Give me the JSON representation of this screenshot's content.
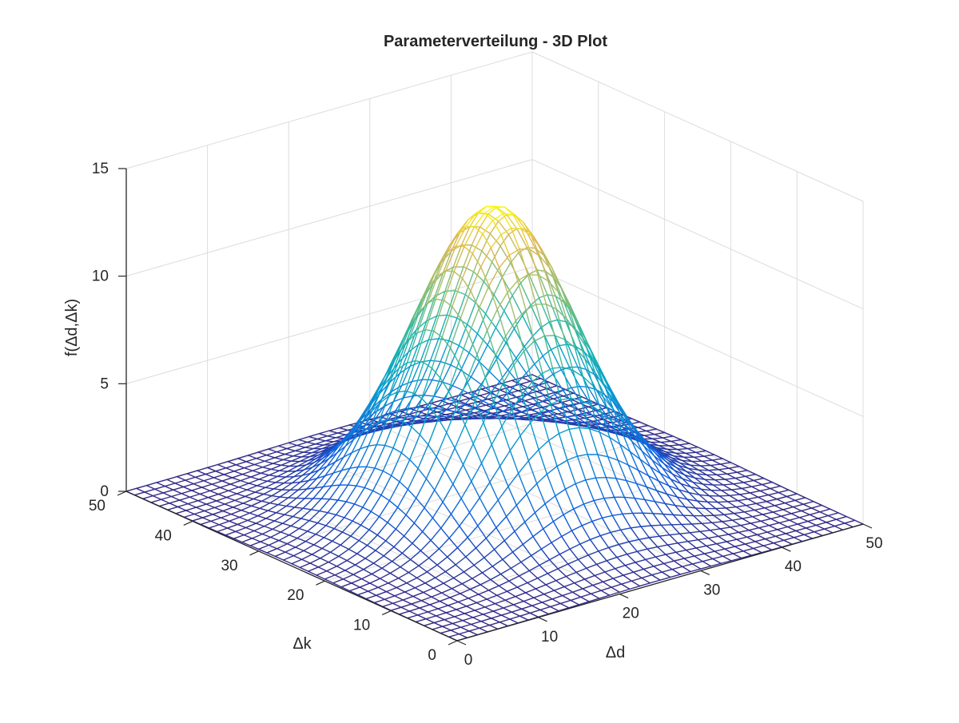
{
  "chart_data": {
    "type": "surface",
    "title": "Parameterverteilung - 3D Plot",
    "xlabel": "Δd",
    "ylabel": "Δk",
    "zlabel": "f(Δd,Δk)",
    "xlim": [
      0,
      50
    ],
    "ylim": [
      0,
      50
    ],
    "zlim": [
      0,
      15
    ],
    "xticks": [
      0,
      10,
      20,
      30,
      40,
      50
    ],
    "yticks": [
      0,
      10,
      20,
      30,
      40,
      50
    ],
    "zticks": [
      0,
      5,
      10,
      15
    ],
    "grid": true,
    "colormap": "parula",
    "surface": {
      "function": "gaussian",
      "peak": 14,
      "center_x": 25,
      "center_y": 25,
      "sigma_x": 8,
      "sigma_y": 8,
      "grid_spacing": 1.25,
      "domain": [
        0,
        50
      ]
    }
  },
  "colors": {
    "axis": "#262626",
    "grid": "#dcdcdc",
    "parula_low": "#352a87",
    "parula_mid": "#0fa5c6",
    "parula_high": "#f9fb0e"
  }
}
